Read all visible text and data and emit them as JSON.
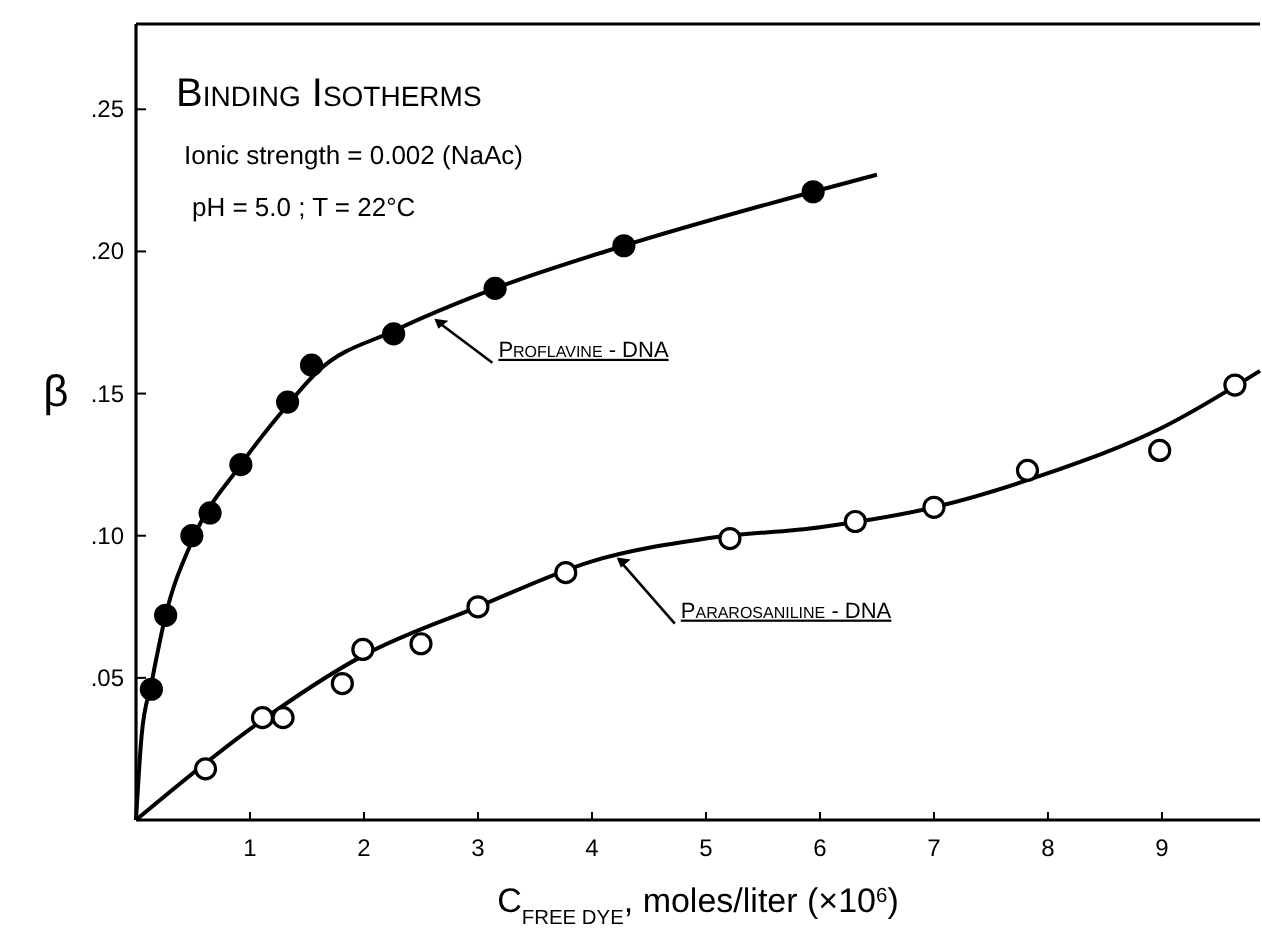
{
  "chart_data": {
    "type": "scatter",
    "title": "Binding Isotherms",
    "subtitle": "Ionic strength = 0.002 (NaAc)",
    "xlabel": "C$_{FREE DYE}$, moles/liter (×10$^{6}$)",
    "ylabel": "β",
    "annotations": [
      "pH = 5.0 ; T = 22°C",
      {
        "text": "Proflavine - DNA",
        "x": 2.6,
        "y": 0.177
      },
      {
        "text": "Pararosaniline - DNA",
        "x": 4.2,
        "y": 0.093
      }
    ],
    "xlim": [
      0,
      9.86
    ],
    "ylim": [
      0,
      0.28
    ],
    "xticks": [
      1,
      2,
      3,
      4,
      5,
      6,
      7,
      8,
      9
    ],
    "yticks": [
      {
        "value": 0.05,
        "label": ".05"
      },
      {
        "value": 0.1,
        "label": ".10"
      },
      {
        "value": 0.15,
        "label": ".15"
      },
      {
        "value": 0.2,
        "label": ".20"
      },
      {
        "value": 0.25,
        "label": ".25"
      }
    ],
    "grid": false,
    "series": [
      {
        "marker": "circle",
        "color": "#000000",
        "x": [
          0.135,
          0.26,
          0.49,
          0.65,
          0.92,
          1.33,
          1.54,
          2.26,
          3.15,
          4.28,
          5.94
        ],
        "values": [
          0.046,
          0.072,
          0.1,
          0.108,
          0.125,
          0.147,
          0.16,
          0.171,
          0.187,
          0.202,
          0.221
        ]
      },
      {
        "marker": "circle",
        "color": "#000000",
        "x": [
          0.61,
          1.11,
          1.29,
          1.81,
          1.99,
          2.5,
          3.0,
          3.77,
          5.21,
          6.31,
          7.0,
          7.82,
          8.98,
          9.64
        ],
        "values": [
          0.018,
          0.036,
          0.036,
          0.048,
          0.06,
          0.062,
          0.075,
          0.087,
          0.099,
          0.105,
          0.11,
          0.123,
          0.13,
          0.153
        ]
      },
      {
        "type": "line",
        "color": "#000000",
        "x": [
          0,
          0.05,
          0.135,
          0.26,
          0.49,
          0.92,
          1.33,
          1.6,
          2.26,
          3.15,
          4.28,
          5.94,
          6.5
        ],
        "values": [
          0,
          0.03,
          0.048,
          0.072,
          0.098,
          0.125,
          0.146,
          0.158,
          0.172,
          0.187,
          0.202,
          0.221,
          0.227
        ]
      },
      {
        "type": "line",
        "color": "#000000",
        "x": [
          0,
          1,
          2,
          3,
          4,
          5,
          6,
          7,
          8,
          9,
          9.86
        ],
        "values": [
          0,
          0.032,
          0.058,
          0.075,
          0.091,
          0.099,
          0.103,
          0.11,
          0.122,
          0.138,
          0.158
        ]
      }
    ]
  }
}
